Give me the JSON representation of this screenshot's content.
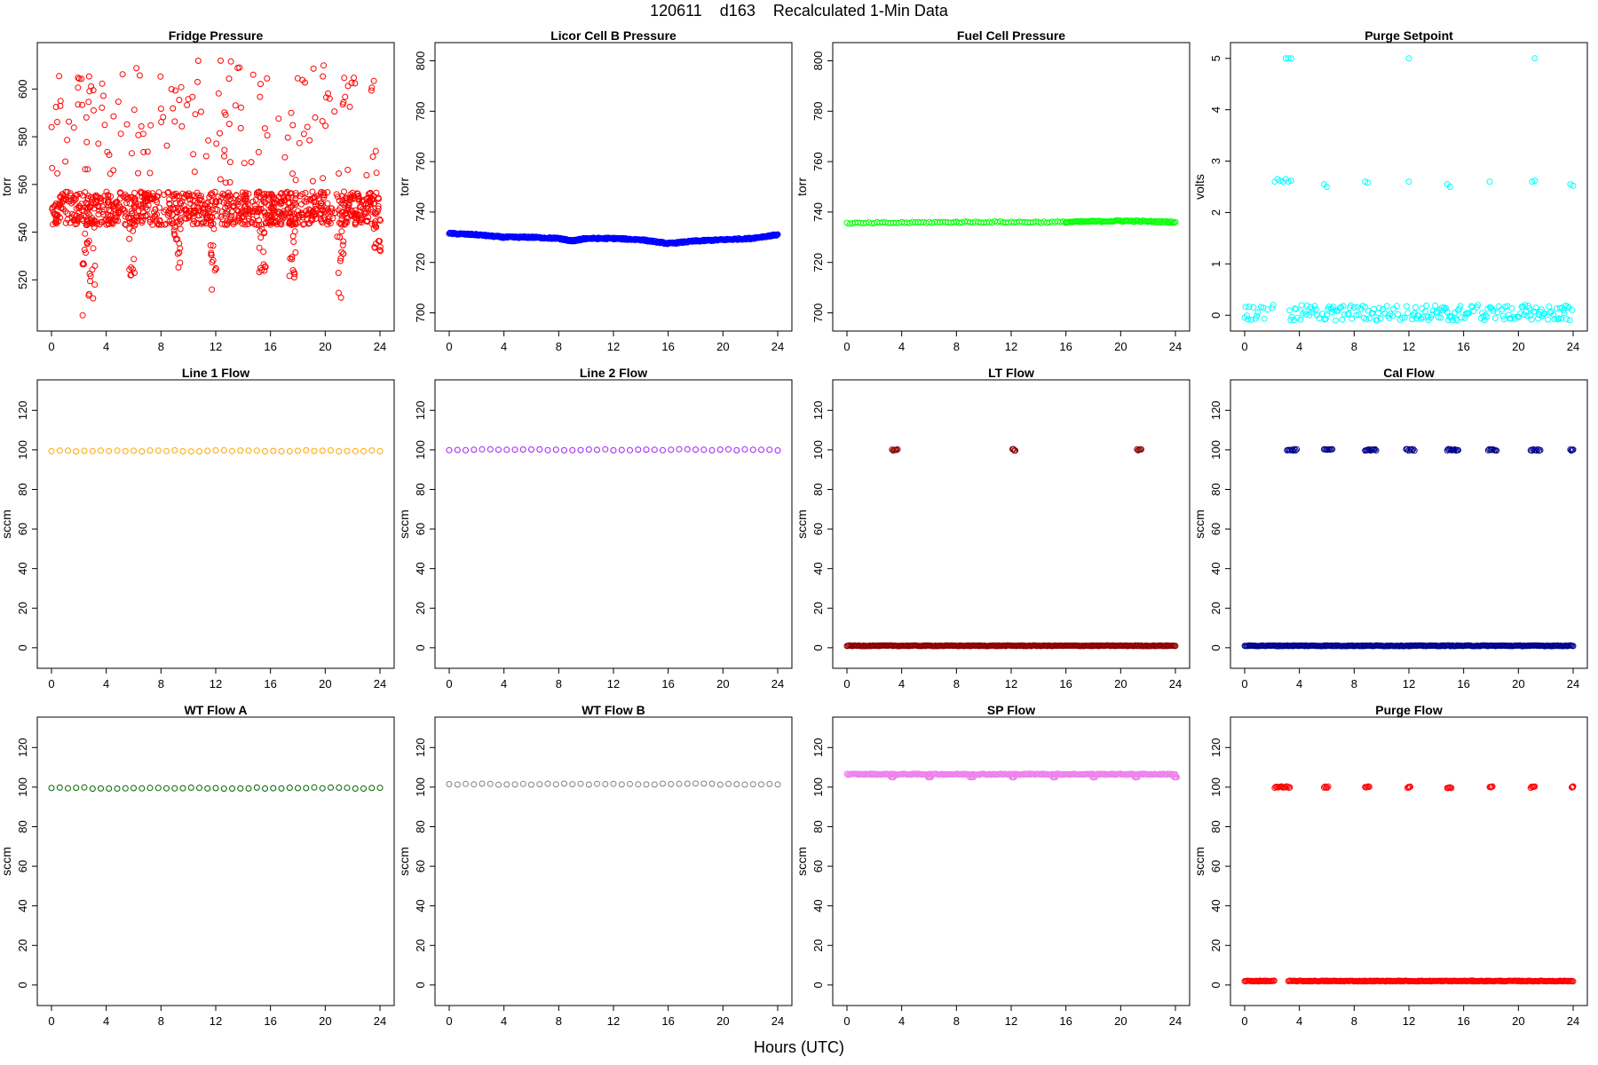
{
  "figure": {
    "title": "120611    d163    Recalculated 1-Min Data",
    "xlabel": "Hours (UTC)"
  },
  "chart_data": [
    {
      "type": "scatter",
      "title": "Fridge Pressure",
      "ylabel": "torr",
      "color": "#ff0000",
      "xlim": [
        0,
        24
      ],
      "ylim": [
        503,
        615
      ],
      "xticks": [
        0,
        4,
        8,
        12,
        16,
        20,
        24
      ],
      "yticks": [
        520,
        540,
        560,
        580,
        600
      ],
      "series": [
        {
          "baseline": 550,
          "spread": 7,
          "outliers_high": [
            560,
            612
          ],
          "dips": [
            [
              2.5,
              505
            ],
            [
              3.0,
              512
            ],
            [
              5.9,
              519
            ],
            [
              9.2,
              524
            ],
            [
              11.8,
              515
            ],
            [
              15.4,
              523
            ],
            [
              17.6,
              520
            ],
            [
              21.1,
              511
            ],
            [
              23.8,
              532
            ]
          ]
        }
      ]
    },
    {
      "type": "scatter",
      "title": "Licor Cell B Pressure",
      "ylabel": "torr",
      "color": "#0000ff",
      "xlim": [
        0,
        24
      ],
      "ylim": [
        697,
        803
      ],
      "xticks": [
        0,
        4,
        8,
        12,
        16,
        20,
        24
      ],
      "yticks": [
        700,
        720,
        740,
        760,
        780,
        800
      ],
      "series": [
        {
          "x": [
            0,
            2,
            4,
            6,
            8,
            9,
            10,
            12,
            14,
            16,
            18,
            20,
            22,
            24
          ],
          "y": [
            731.5,
            731,
            730,
            730,
            729.5,
            728.5,
            729.5,
            729.5,
            729,
            727.5,
            728.5,
            729,
            729.5,
            731
          ]
        }
      ]
    },
    {
      "type": "scatter",
      "title": "Fuel Cell Pressure",
      "ylabel": "torr",
      "color": "#00ff00",
      "xlim": [
        0,
        24
      ],
      "ylim": [
        697,
        803
      ],
      "xticks": [
        0,
        4,
        8,
        12,
        16,
        20,
        24
      ],
      "yticks": [
        700,
        720,
        740,
        760,
        780,
        800
      ],
      "series": [
        {
          "x": [
            0,
            8,
            16,
            20,
            24
          ],
          "y": [
            735.5,
            736,
            736,
            736.5,
            736
          ]
        }
      ]
    },
    {
      "type": "scatter",
      "title": "Purge Setpoint",
      "ylabel": "volts",
      "color": "#00ffff",
      "xlim": [
        0,
        24
      ],
      "ylim": [
        -0.1,
        5.1
      ],
      "xticks": [
        0,
        4,
        8,
        12,
        16,
        20,
        24
      ],
      "yticks": [
        0,
        1,
        2,
        3,
        4,
        5
      ],
      "series": [
        {
          "baseline": 0,
          "gap": [
            2.2,
            3.2
          ],
          "points": [
            [
              2.2,
              2.6
            ],
            [
              2.4,
              2.65
            ],
            [
              2.6,
              2.62
            ],
            [
              2.8,
              2.6
            ],
            [
              3.0,
              2.65
            ],
            [
              3.2,
              2.6
            ],
            [
              3.4,
              2.62
            ],
            [
              5.8,
              2.55
            ],
            [
              6.0,
              2.5
            ],
            [
              8.8,
              2.6
            ],
            [
              9.0,
              2.58
            ],
            [
              12.0,
              2.6
            ],
            [
              14.8,
              2.55
            ],
            [
              15.0,
              2.5
            ],
            [
              17.9,
              2.6
            ],
            [
              21.0,
              2.6
            ],
            [
              21.2,
              2.62
            ],
            [
              23.8,
              2.55
            ],
            [
              24.0,
              2.52
            ],
            [
              3.0,
              5
            ],
            [
              3.2,
              5
            ],
            [
              3.4,
              5
            ],
            [
              12.0,
              5
            ],
            [
              21.2,
              5
            ]
          ]
        }
      ]
    },
    {
      "type": "scatter",
      "title": "Line 1 Flow",
      "ylabel": "sccm",
      "color": "#ffa500",
      "xlim": [
        0,
        24
      ],
      "ylim": [
        -5,
        130
      ],
      "xticks": [
        0,
        4,
        8,
        12,
        16,
        20,
        24
      ],
      "yticks": [
        0,
        20,
        40,
        60,
        80,
        100,
        120
      ],
      "series": [
        {
          "x": [
            0,
            24
          ],
          "y": [
            99.5,
            99.5
          ]
        }
      ]
    },
    {
      "type": "scatter",
      "title": "Line 2 Flow",
      "ylabel": "sccm",
      "color": "#a020f0",
      "xlim": [
        0,
        24
      ],
      "ylim": [
        -5,
        130
      ],
      "xticks": [
        0,
        4,
        8,
        12,
        16,
        20,
        24
      ],
      "yticks": [
        0,
        20,
        40,
        60,
        80,
        100,
        120
      ],
      "series": [
        {
          "x": [
            0,
            24
          ],
          "y": [
            100,
            100
          ]
        }
      ]
    },
    {
      "type": "scatter",
      "title": "LT Flow",
      "ylabel": "sccm",
      "color": "#8b0000",
      "xlim": [
        0,
        24
      ],
      "ylim": [
        -5,
        130
      ],
      "xticks": [
        0,
        4,
        8,
        12,
        16,
        20,
        24
      ],
      "yticks": [
        0,
        20,
        40,
        60,
        80,
        100,
        120
      ],
      "series": [
        {
          "baseline": 1,
          "high": [
            [
              3.3,
              3.7,
              100
            ],
            [
              12.1,
              12.3,
              100
            ],
            [
              21.2,
              21.5,
              100
            ]
          ]
        }
      ]
    },
    {
      "type": "scatter",
      "title": "Cal Flow",
      "ylabel": "sccm",
      "color": "#00008b",
      "xlim": [
        0,
        24
      ],
      "ylim": [
        -5,
        130
      ],
      "xticks": [
        0,
        4,
        8,
        12,
        16,
        20,
        24
      ],
      "yticks": [
        0,
        20,
        40,
        60,
        80,
        100,
        120
      ],
      "series": [
        {
          "baseline": 1,
          "high": [
            [
              3.1,
              3.8,
              100
            ],
            [
              5.8,
              6.4,
              100
            ],
            [
              8.8,
              9.6,
              100
            ],
            [
              11.8,
              12.4,
              100
            ],
            [
              14.8,
              15.6,
              100
            ],
            [
              17.8,
              18.4,
              100
            ],
            [
              20.9,
              21.6,
              100
            ],
            [
              23.8,
              24.0,
              100
            ]
          ]
        }
      ]
    },
    {
      "type": "scatter",
      "title": "WT Flow A",
      "ylabel": "sccm",
      "color": "#006400",
      "xlim": [
        0,
        24
      ],
      "ylim": [
        -5,
        130
      ],
      "xticks": [
        0,
        4,
        8,
        12,
        16,
        20,
        24
      ],
      "yticks": [
        0,
        20,
        40,
        60,
        80,
        100,
        120
      ],
      "series": [
        {
          "x": [
            0,
            24
          ],
          "y": [
            99.5,
            99.5
          ]
        }
      ]
    },
    {
      "type": "scatter",
      "title": "WT Flow B",
      "ylabel": "sccm",
      "color": "#808080",
      "xlim": [
        0,
        24
      ],
      "ylim": [
        -5,
        130
      ],
      "xticks": [
        0,
        4,
        8,
        12,
        16,
        20,
        24
      ],
      "yticks": [
        0,
        20,
        40,
        60,
        80,
        100,
        120
      ],
      "series": [
        {
          "x": [
            0,
            24
          ],
          "y": [
            101.5,
            101.5
          ]
        }
      ]
    },
    {
      "type": "scatter",
      "title": "SP Flow",
      "ylabel": "sccm",
      "color": "#ee82ee",
      "xlim": [
        0,
        24
      ],
      "ylim": [
        -5,
        130
      ],
      "xticks": [
        0,
        4,
        8,
        12,
        16,
        20,
        24
      ],
      "yticks": [
        0,
        20,
        40,
        60,
        80,
        100,
        120
      ],
      "series": [
        {
          "baseline": 106.5,
          "dips": [
            3.3,
            6.0,
            9.1,
            12.1,
            15.1,
            18.1,
            21.1,
            24.0
          ],
          "dip_value": 105
        }
      ]
    },
    {
      "type": "scatter",
      "title": "Purge Flow",
      "ylabel": "sccm",
      "color": "#ff0000",
      "xlim": [
        0,
        24
      ],
      "ylim": [
        -5,
        130
      ],
      "xticks": [
        0,
        4,
        8,
        12,
        16,
        20,
        24
      ],
      "yticks": [
        0,
        20,
        40,
        60,
        80,
        100,
        120
      ],
      "series": [
        {
          "baseline": 2,
          "gap": [
            2.2,
            3.2
          ],
          "high": [
            [
              2.2,
              3.3,
              100
            ],
            [
              5.8,
              6.1,
              100
            ],
            [
              8.8,
              9.1,
              100
            ],
            [
              11.9,
              12.1,
              100
            ],
            [
              14.8,
              15.1,
              99.5
            ],
            [
              17.9,
              18.1,
              100
            ],
            [
              20.9,
              21.2,
              100
            ],
            [
              23.9,
              24.0,
              100
            ]
          ]
        }
      ]
    }
  ]
}
